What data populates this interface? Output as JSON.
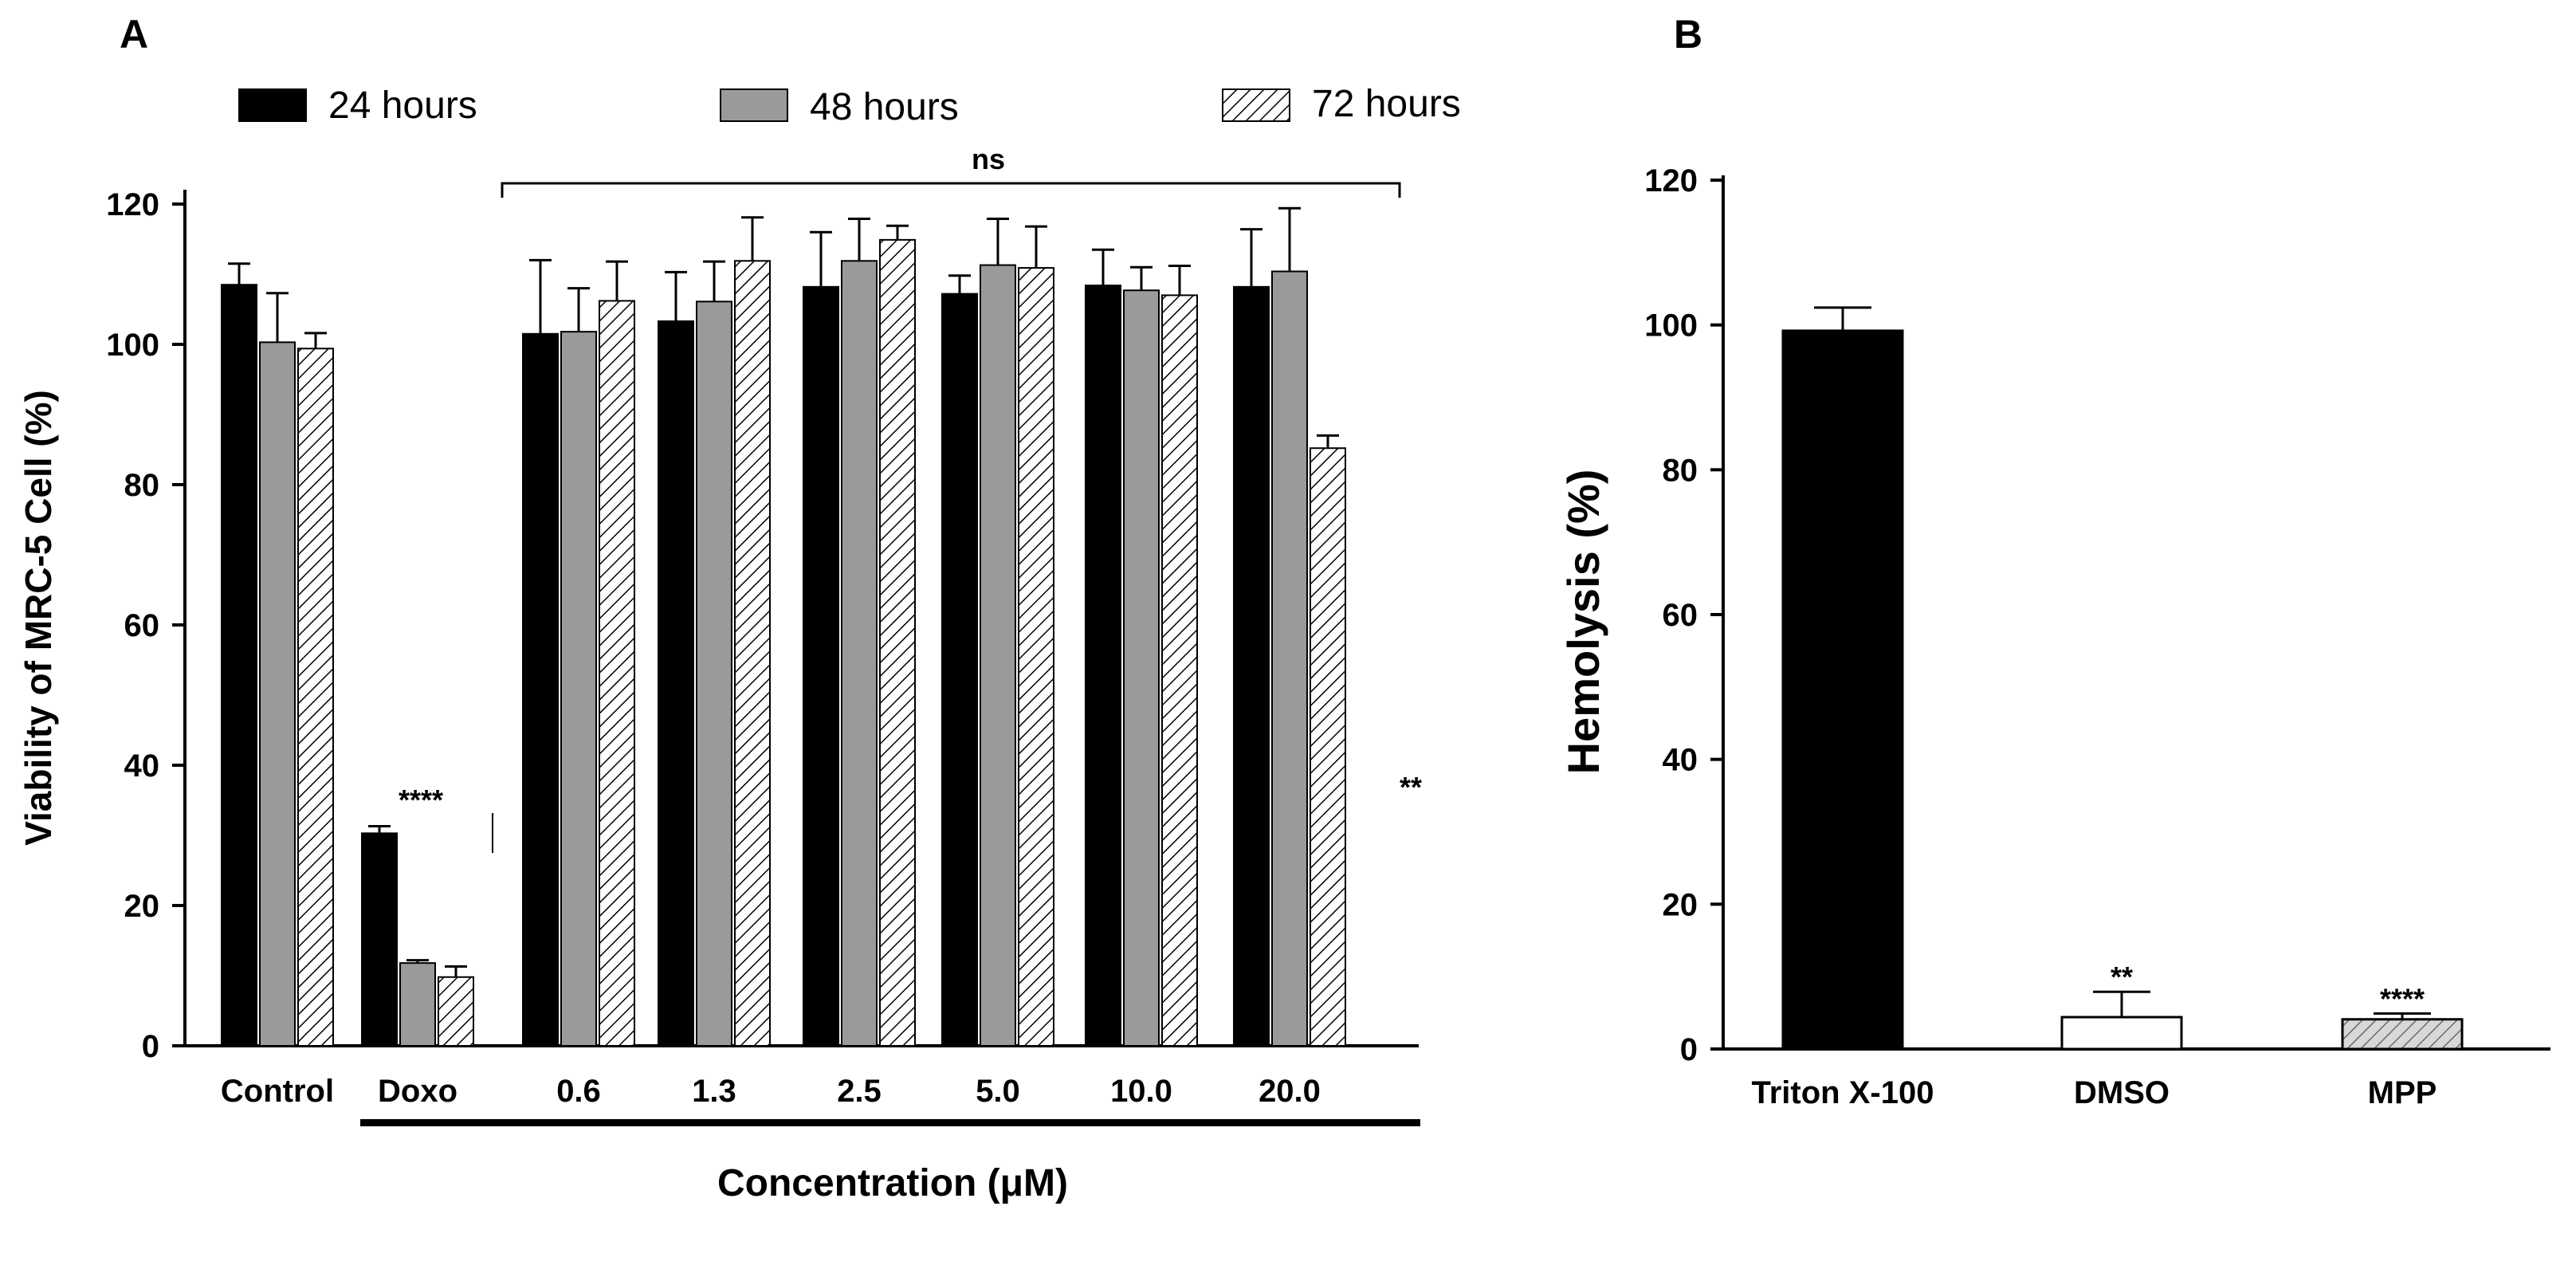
{
  "chart_data": [
    {
      "panel": "A",
      "type": "bar",
      "xlabel": "Concentration (μM)",
      "ylabel": "Viability of  MRC-5 Cell  (%)",
      "ylim": [
        0,
        120
      ],
      "yticks": [
        "0",
        "20",
        "40",
        "60",
        "80",
        "100",
        "120"
      ],
      "categories": [
        "Control",
        "Doxo",
        "0.6",
        "1.3",
        "2.5",
        "5.0",
        "10.0",
        "20.0"
      ],
      "series": [
        {
          "name": "24 hours",
          "fill": "black",
          "values": [
            108.5,
            30.3,
            101.5,
            103.3,
            108.2,
            107.2,
            108.4,
            108.2
          ],
          "errors": [
            3.0,
            1.0,
            10.5,
            7.0,
            7.8,
            2.6,
            5.1,
            8.2
          ]
        },
        {
          "name": "48 hours",
          "fill": "gray",
          "values": [
            100.3,
            11.8,
            101.8,
            106.1,
            111.9,
            111.3,
            107.7,
            110.4
          ],
          "errors": [
            7.0,
            0.4,
            6.2,
            5.7,
            6.0,
            6.6,
            3.3,
            9.0
          ]
        },
        {
          "name": "72 hours",
          "fill": "hatched",
          "values": [
            99.4,
            9.8,
            106.2,
            111.9,
            114.9,
            110.9,
            107.0,
            85.2
          ],
          "errors": [
            2.2,
            1.5,
            5.6,
            6.2,
            2.0,
            5.9,
            4.2,
            1.8
          ]
        }
      ],
      "annotations": {
        "doxo": "****",
        "last": "**",
        "bracket": "ns"
      }
    },
    {
      "panel": "B",
      "type": "bar",
      "xlabel": "",
      "ylabel": "Hemolysis (%)",
      "ylim": [
        0,
        120
      ],
      "yticks": [
        "0",
        "20",
        "40",
        "60",
        "80",
        "100",
        "120"
      ],
      "categories": [
        "Triton X-100",
        "DMSO",
        "MPP"
      ],
      "values": [
        99.2,
        4.4,
        4.1
      ],
      "errors": [
        3.2,
        3.5,
        0.8
      ],
      "fills": [
        "black",
        "white",
        "hatched-gray"
      ],
      "significance": [
        "",
        "**",
        "****"
      ]
    }
  ]
}
